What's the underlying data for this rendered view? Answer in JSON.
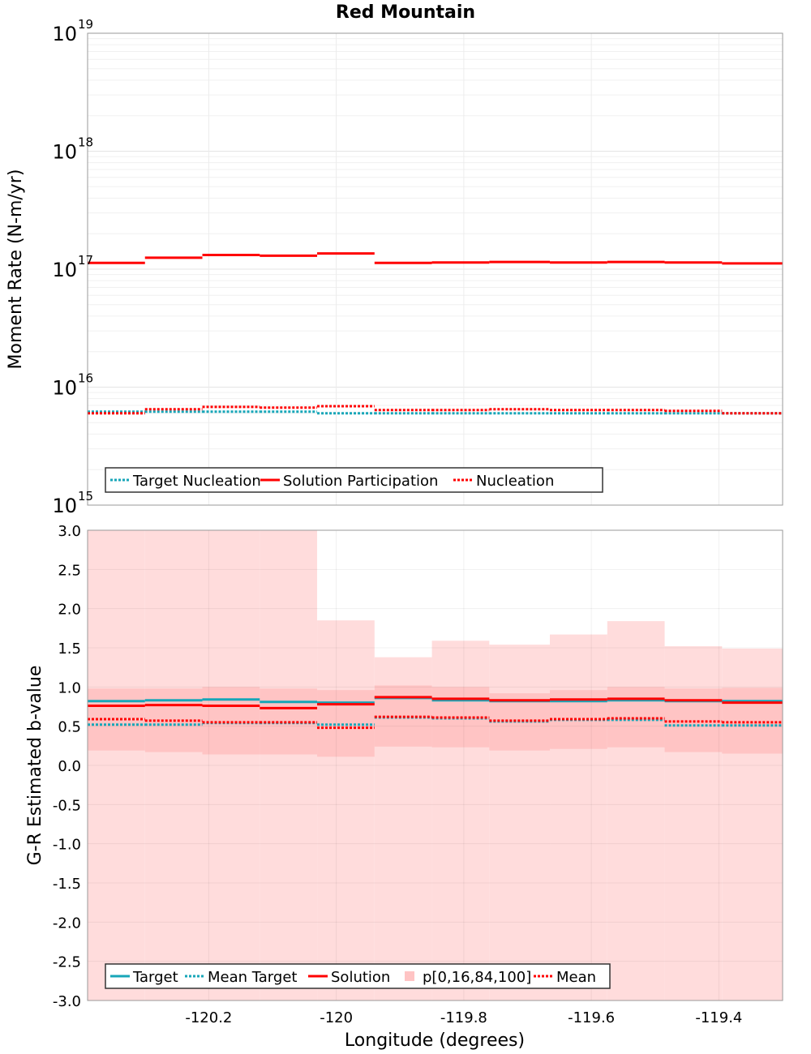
{
  "chart_data": [
    {
      "type": "line",
      "title": "Red Mountain",
      "ylabel": "Moment Rate (N-m/yr)",
      "yscale": "log",
      "ylim": [
        1000000000000000.0,
        1e+19
      ],
      "xlim": [
        -120.39,
        -119.3
      ],
      "ytick_base": "10",
      "yticks": [
        {
          "base": "10",
          "exp": "15",
          "value": 1000000000000000.0
        },
        {
          "base": "10",
          "exp": "16",
          "value": 1e+16
        },
        {
          "base": "10",
          "exp": "17",
          "value": 1e+17
        },
        {
          "base": "10",
          "exp": "18",
          "value": 1e+18
        },
        {
          "base": "10",
          "exp": "19",
          "value": 1e+19
        }
      ],
      "x_edges": [
        -120.39,
        -120.3,
        -120.21,
        -120.12,
        -120.03,
        -119.94,
        -119.85,
        -119.76,
        -119.665,
        -119.575,
        -119.485,
        -119.395,
        -119.3
      ],
      "series": [
        {
          "name": "Target Nucleation",
          "style": "dotted",
          "color": "#17a6b8",
          "values": [
            6200000000000000.0,
            6200000000000000.0,
            6200000000000000.0,
            6200000000000000.0,
            6000000000000000.0,
            6000000000000000.0,
            6000000000000000.0,
            6000000000000000.0,
            6000000000000000.0,
            6000000000000000.0,
            6000000000000000.0,
            6000000000000000.0
          ]
        },
        {
          "name": "Solution Participation",
          "style": "solid",
          "color": "#ff0000",
          "values": [
            1.13e+17,
            1.25e+17,
            1.32e+17,
            1.3e+17,
            1.36e+17,
            1.13e+17,
            1.14e+17,
            1.15e+17,
            1.14e+17,
            1.15e+17,
            1.14e+17,
            1.12e+17
          ]
        },
        {
          "name": "Nucleation",
          "style": "dotted",
          "color": "#ff0000",
          "values": [
            6000000000000000.0,
            6500000000000000.0,
            6800000000000000.0,
            6700000000000000.0,
            6900000000000000.0,
            6400000000000000.0,
            6400000000000000.0,
            6500000000000000.0,
            6400000000000000.0,
            6400000000000000.0,
            6300000000000000.0,
            6000000000000000.0
          ]
        }
      ],
      "legend": [
        "Target Nucleation",
        "Solution Participation",
        "Nucleation"
      ],
      "legend_position": "bottom-left"
    },
    {
      "type": "line",
      "xlabel": "Longitude (degrees)",
      "ylabel": "G-R Estimated b-value",
      "ylim": [
        -3.0,
        3.0
      ],
      "xlim": [
        -120.39,
        -119.3
      ],
      "yticks": [
        "3.0",
        "2.5",
        "2.0",
        "1.5",
        "1.0",
        "0.5",
        "0.0",
        "-0.5",
        "-1.0",
        "-1.5",
        "-2.0",
        "-2.5",
        "-3.0"
      ],
      "xticks": [
        "-120.2",
        "-120",
        "-119.8",
        "-119.6",
        "-119.4"
      ],
      "x_edges": [
        -120.39,
        -120.3,
        -120.21,
        -120.12,
        -120.03,
        -119.94,
        -119.85,
        -119.76,
        -119.665,
        -119.575,
        -119.485,
        -119.395,
        -119.3
      ],
      "band_outer": {
        "name": "p[0,16,84,100]",
        "low": [
          -3.0,
          -3.0,
          -3.0,
          -3.0,
          -3.0,
          -3.0,
          -3.0,
          -3.0,
          -3.0,
          -3.0,
          -3.0,
          -3.0
        ],
        "high": [
          3.0,
          3.0,
          3.0,
          3.0,
          1.85,
          1.38,
          1.59,
          1.54,
          1.67,
          1.84,
          1.52,
          1.49
        ],
        "color": "#ffdcdc"
      },
      "band_inner": {
        "low": [
          0.19,
          0.17,
          0.14,
          0.14,
          0.11,
          0.24,
          0.23,
          0.19,
          0.21,
          0.23,
          0.17,
          0.15
        ],
        "high": [
          0.98,
          0.98,
          1.0,
          0.98,
          0.96,
          1.02,
          1.0,
          0.92,
          0.96,
          1.0,
          0.98,
          0.99
        ],
        "color": "#ffc4c4"
      },
      "series": [
        {
          "name": "Target",
          "style": "solid",
          "color": "#17a6b8",
          "values": [
            0.82,
            0.83,
            0.84,
            0.81,
            0.8,
            0.86,
            0.83,
            0.82,
            0.82,
            0.83,
            0.82,
            0.82
          ]
        },
        {
          "name": "Mean Target",
          "style": "dotted",
          "color": "#17a6b8",
          "values": [
            0.52,
            0.52,
            0.54,
            0.54,
            0.52,
            0.61,
            0.6,
            0.56,
            0.58,
            0.58,
            0.51,
            0.51
          ]
        },
        {
          "name": "Solution",
          "style": "solid",
          "color": "#ff0000",
          "values": [
            0.76,
            0.77,
            0.76,
            0.73,
            0.78,
            0.87,
            0.85,
            0.83,
            0.84,
            0.85,
            0.83,
            0.8
          ]
        },
        {
          "name": "Mean",
          "style": "dotted",
          "color": "#ff0000",
          "values": [
            0.59,
            0.57,
            0.55,
            0.55,
            0.48,
            0.62,
            0.61,
            0.57,
            0.59,
            0.6,
            0.56,
            0.55
          ]
        }
      ],
      "legend": [
        "Target",
        "Mean Target",
        "Solution",
        "p[0,16,84,100]",
        "Mean"
      ],
      "legend_position": "bottom-left"
    }
  ]
}
